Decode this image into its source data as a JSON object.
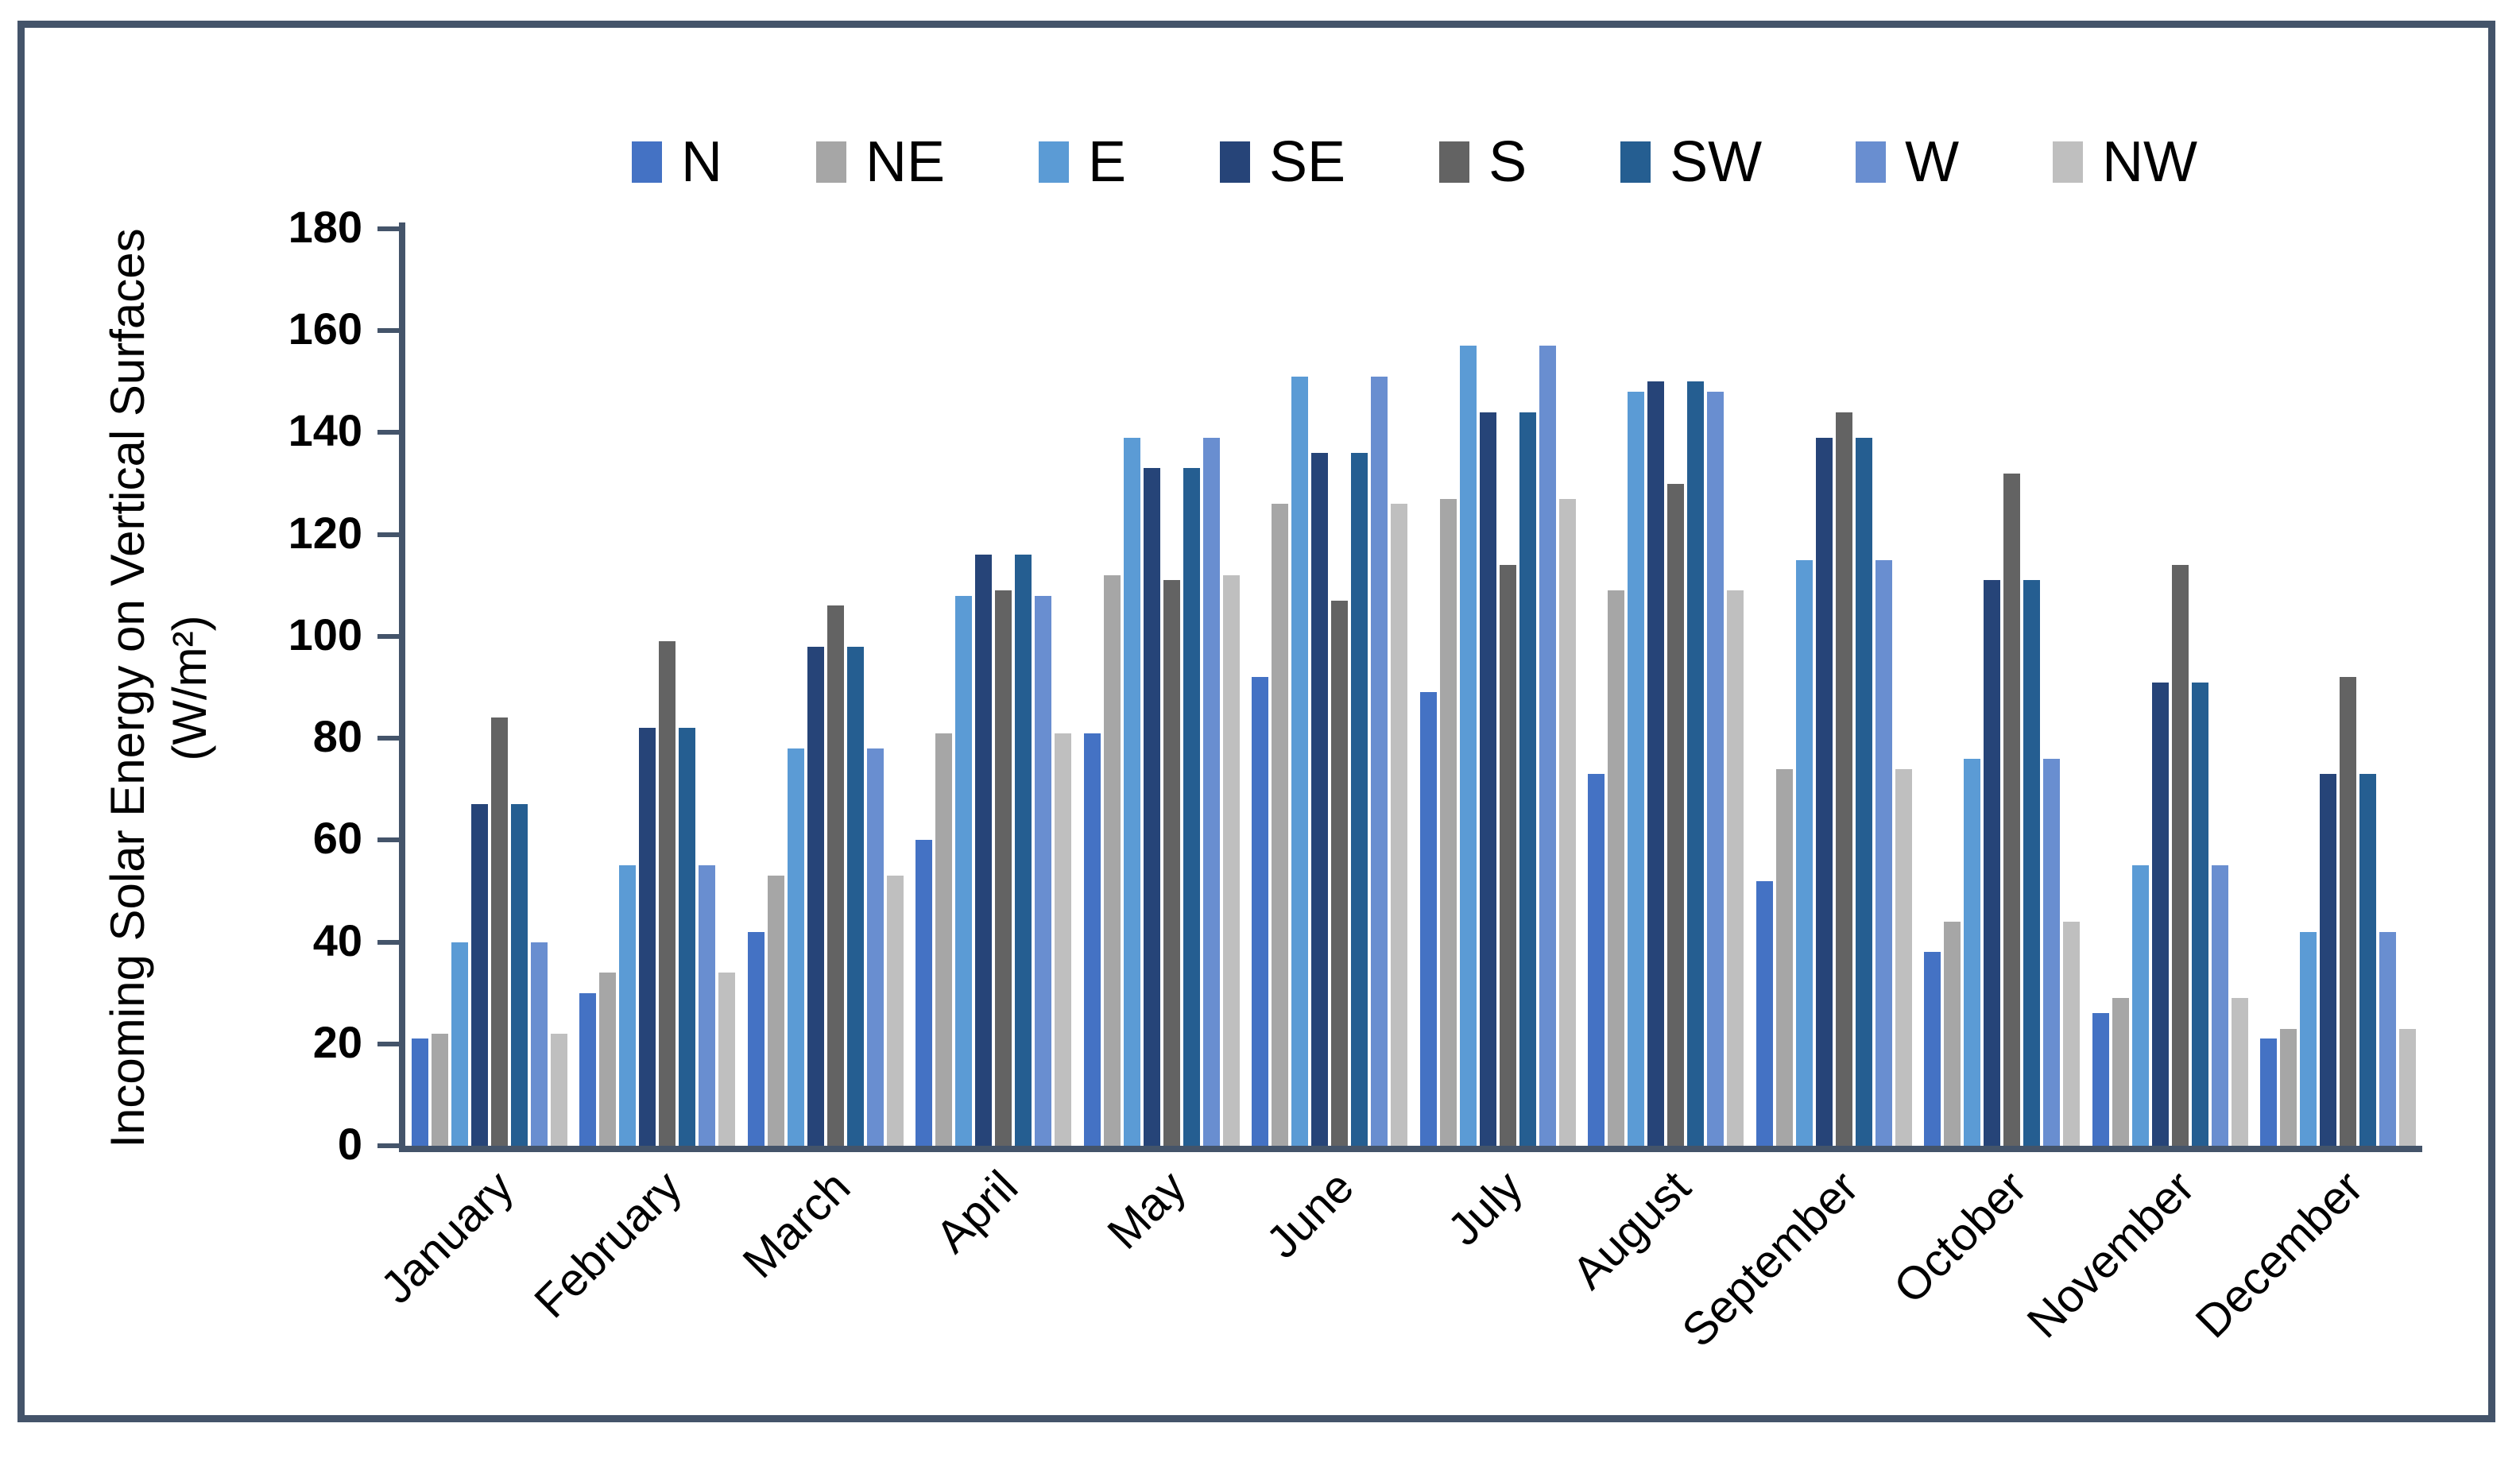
{
  "colors": {
    "axis": "#44546A",
    "frame_border": "#44546A",
    "text": "#000000"
  },
  "y_axis": {
    "title_line1": "Incoming Solar Energy on Vertical Surfaces",
    "title_line2": "(W/m²)",
    "ticks": [
      0,
      20,
      40,
      60,
      80,
      100,
      120,
      140,
      160,
      180
    ],
    "max": 180
  },
  "chart_data": {
    "type": "bar",
    "title": "",
    "xlabel": "",
    "ylabel": "Incoming Solar Energy on Vertical Surfaces (W/m²)",
    "ylim": [
      0,
      180
    ],
    "ytick_step": 20,
    "grid": false,
    "legend_position": "top",
    "categories": [
      "January",
      "February",
      "March",
      "April",
      "May",
      "June",
      "July",
      "August",
      "September",
      "October",
      "November",
      "December"
    ],
    "series": [
      {
        "name": "N",
        "color": "#4472C4",
        "values": [
          21,
          30,
          42,
          60,
          81,
          92,
          89,
          73,
          52,
          38,
          26,
          21
        ]
      },
      {
        "name": "NE",
        "color": "#A6A6A6",
        "values": [
          22,
          34,
          53,
          81,
          112,
          126,
          127,
          109,
          74,
          44,
          29,
          23
        ]
      },
      {
        "name": "E",
        "color": "#5B9BD5",
        "values": [
          40,
          55,
          78,
          108,
          139,
          151,
          157,
          148,
          115,
          76,
          55,
          42
        ]
      },
      {
        "name": "SE",
        "color": "#264478",
        "values": [
          67,
          82,
          98,
          116,
          133,
          136,
          144,
          150,
          139,
          111,
          91,
          73
        ]
      },
      {
        "name": "S",
        "color": "#636363",
        "values": [
          84,
          99,
          106,
          109,
          111,
          107,
          114,
          130,
          144,
          132,
          114,
          92
        ]
      },
      {
        "name": "SW",
        "color": "#255E91",
        "values": [
          67,
          82,
          98,
          116,
          133,
          136,
          144,
          150,
          139,
          111,
          91,
          73
        ]
      },
      {
        "name": "W",
        "color": "#698ED0",
        "values": [
          40,
          55,
          78,
          108,
          139,
          151,
          157,
          148,
          115,
          76,
          55,
          42
        ]
      },
      {
        "name": "NW",
        "color": "#BFBFBF",
        "values": [
          22,
          34,
          53,
          81,
          112,
          126,
          127,
          109,
          74,
          44,
          29,
          23
        ]
      }
    ]
  }
}
